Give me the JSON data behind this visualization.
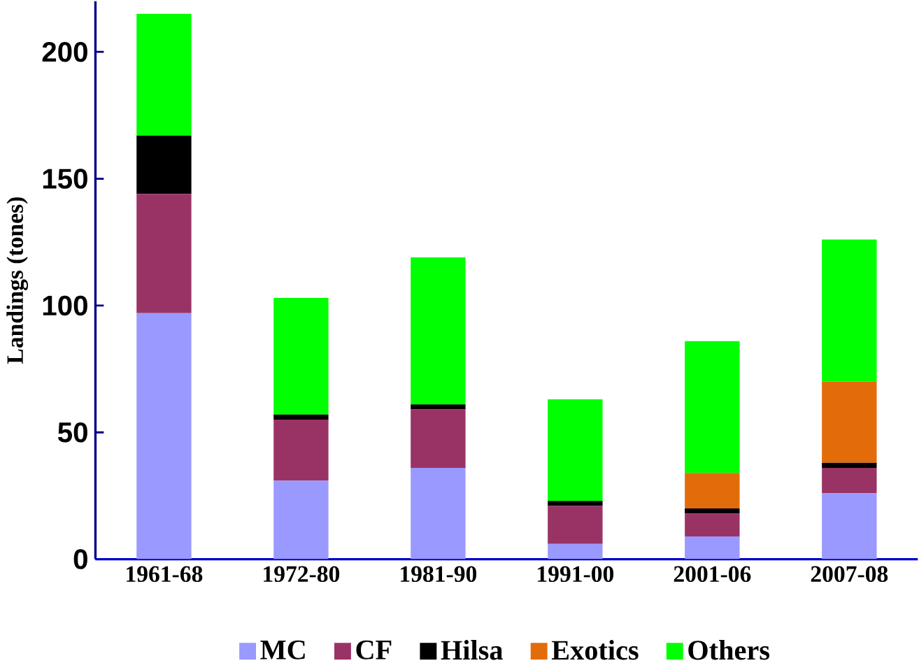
{
  "chart_data": {
    "type": "bar",
    "stacked": true,
    "ylabel": "Landings (tones)",
    "categories": [
      "1961-68",
      "1972-80",
      "1981-90",
      "1991-00",
      "2001-06",
      "2007-08"
    ],
    "series": [
      {
        "name": "MC",
        "color": "#9999ff",
        "values": [
          97,
          31,
          36,
          6,
          9,
          26
        ]
      },
      {
        "name": "CF",
        "color": "#993366",
        "values": [
          47,
          24,
          23,
          15,
          9,
          10
        ]
      },
      {
        "name": "Hilsa",
        "color": "#000000",
        "values": [
          23,
          2,
          2,
          2,
          2,
          2
        ]
      },
      {
        "name": "Exotics",
        "color": "#e36c0a",
        "values": [
          0,
          0,
          0,
          0,
          14,
          32
        ]
      },
      {
        "name": "Others",
        "color": "#00ff00",
        "values": [
          48,
          46,
          58,
          40,
          52,
          56
        ]
      }
    ],
    "ylim": [
      0,
      220
    ],
    "yticks": [
      0,
      50,
      100,
      150,
      200
    ],
    "grid": false,
    "legend": "bottom"
  }
}
